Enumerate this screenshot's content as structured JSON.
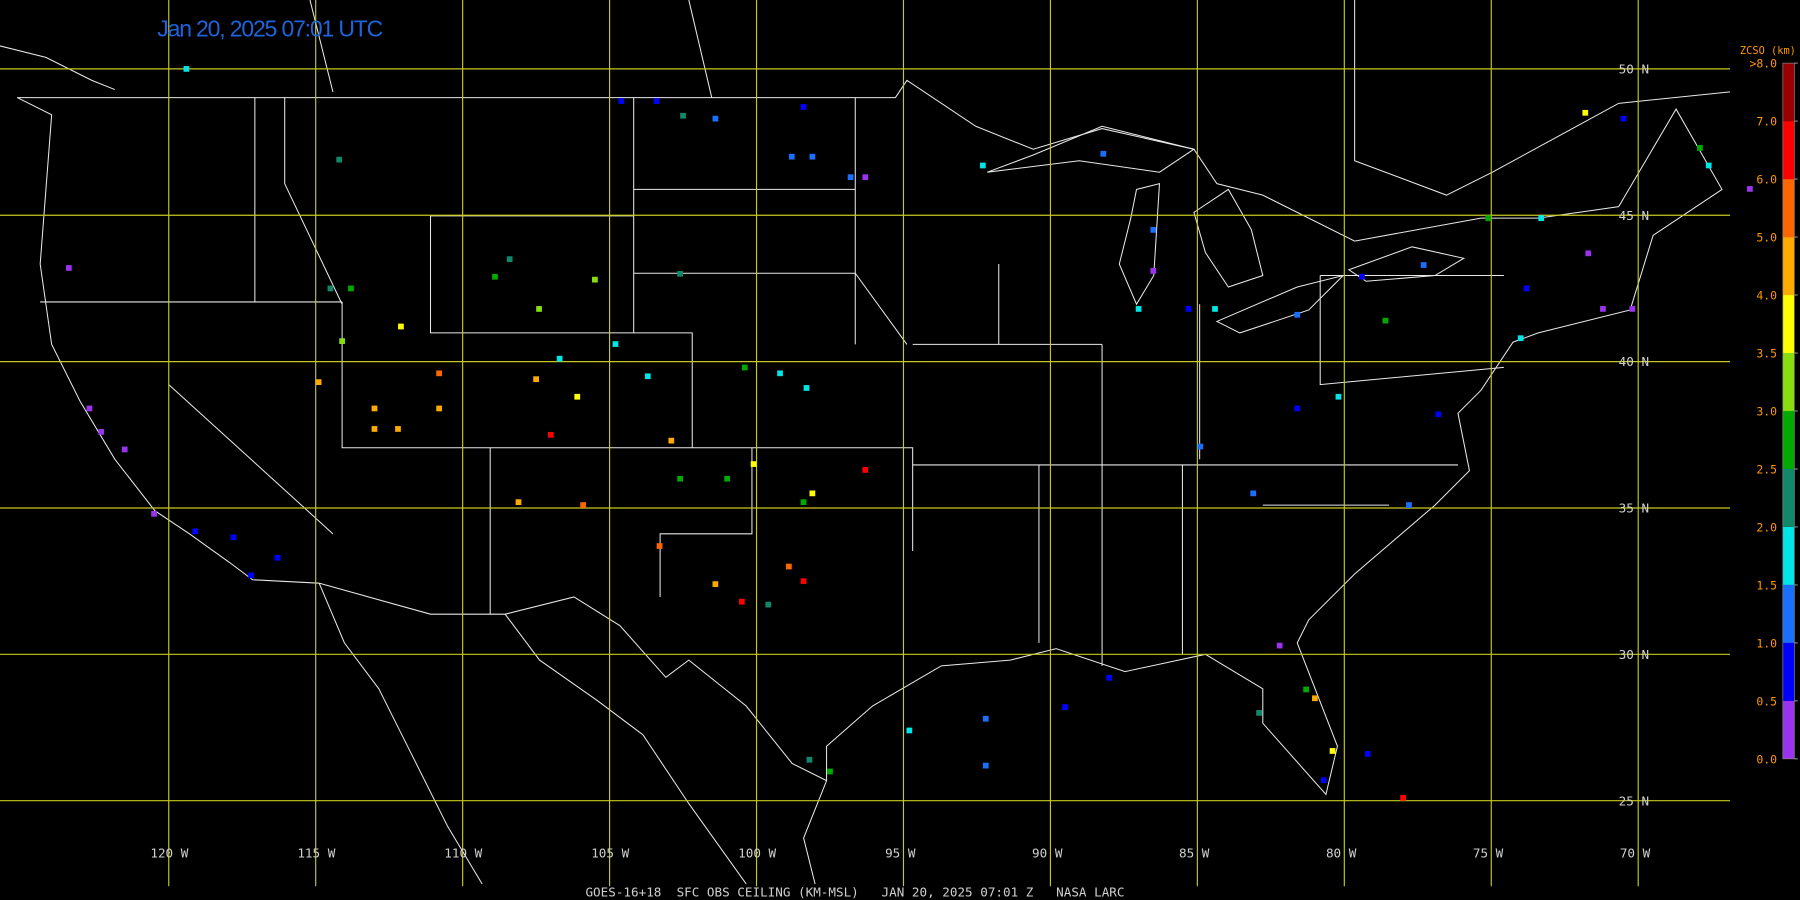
{
  "map": {
    "title": "Jan 20, 2025 07:01 UTC",
    "caption": "GOES-16+18  SFC OBS CEILING (KM-MSL)   JAN 20, 2025 07:01 Z   NASA LARC",
    "grid_color": "#c8c81e",
    "lat_lines": [
      {
        "value": 50,
        "label": "50 N"
      },
      {
        "value": 45,
        "label": "45 N"
      },
      {
        "value": 40,
        "label": "40 N"
      },
      {
        "value": 35,
        "label": "35 N"
      },
      {
        "value": 30,
        "label": "30 N"
      },
      {
        "value": 25,
        "label": "25 N"
      }
    ],
    "lon_lines": [
      {
        "value": -120,
        "label": "120 W"
      },
      {
        "value": -115,
        "label": "115 W"
      },
      {
        "value": -110,
        "label": "110 W"
      },
      {
        "value": -105,
        "label": "105 W"
      },
      {
        "value": -100,
        "label": "100 W"
      },
      {
        "value": -95,
        "label": "95 W"
      },
      {
        "value": -90,
        "label": "90 W"
      },
      {
        "value": -85,
        "label": "85 W"
      },
      {
        "value": -80,
        "label": "80 W"
      },
      {
        "value": -75,
        "label": "75 W"
      },
      {
        "value": -70,
        "label": "70 W"
      }
    ],
    "legend": {
      "title": "ZCSO (km)",
      "ticks": [
        {
          "value": 0,
          "label": "0.0"
        },
        {
          "value": 0.5,
          "label": "0.5"
        },
        {
          "value": 1,
          "label": "1.0"
        },
        {
          "value": 1.5,
          "label": "1.5"
        },
        {
          "value": 2,
          "label": "2.0"
        },
        {
          "value": 2.5,
          "label": "2.5"
        },
        {
          "value": 3,
          "label": "3.0"
        },
        {
          "value": 3.5,
          "label": "3.5"
        },
        {
          "value": 4,
          "label": "4.0"
        },
        {
          "value": 5,
          "label": "5.0"
        },
        {
          "value": 6,
          "label": "6.0"
        },
        {
          "value": 7,
          "label": "7.0"
        },
        {
          "value": 8,
          "label": ">8.0"
        }
      ],
      "colors": [
        "#9933ee",
        "#0000ff",
        "#1a6fff",
        "#00e5e5",
        "#11886a",
        "#00aa00",
        "#88dd11",
        "#ffff00",
        "#ffaa00",
        "#ff6600",
        "#ff0000",
        "#990000"
      ],
      "label_color": "#ff9900"
    },
    "stations": [
      {
        "lon": -119.4,
        "lat": 50.0,
        "value": 1.7
      },
      {
        "lon": -123.4,
        "lat": 43.2,
        "value": 0.2
      },
      {
        "lon": -114.2,
        "lat": 46.9,
        "value": 2.2
      },
      {
        "lon": -114.5,
        "lat": 42.5,
        "value": 2.2
      },
      {
        "lon": -113.8,
        "lat": 42.5,
        "value": 2.7
      },
      {
        "lon": -114.1,
        "lat": 40.7,
        "value": 3.2
      },
      {
        "lon": -112.1,
        "lat": 41.2,
        "value": 3.7
      },
      {
        "lon": -114.9,
        "lat": 39.3,
        "value": 4.5
      },
      {
        "lon": -113.0,
        "lat": 38.4,
        "value": 4.5
      },
      {
        "lon": -110.8,
        "lat": 39.6,
        "value": 5.5
      },
      {
        "lon": -113.0,
        "lat": 37.7,
        "value": 4.5
      },
      {
        "lon": -112.2,
        "lat": 37.7,
        "value": 4.5
      },
      {
        "lon": -110.8,
        "lat": 38.4,
        "value": 4.5
      },
      {
        "lon": -108.4,
        "lat": 43.5,
        "value": 2.2
      },
      {
        "lon": -108.9,
        "lat": 42.9,
        "value": 2.7
      },
      {
        "lon": -107.4,
        "lat": 41.8,
        "value": 3.2
      },
      {
        "lon": -105.5,
        "lat": 42.8,
        "value": 3.2
      },
      {
        "lon": -104.6,
        "lat": 48.9,
        "value": 0.7
      },
      {
        "lon": -103.4,
        "lat": 48.9,
        "value": 0.7
      },
      {
        "lon": -102.5,
        "lat": 48.4,
        "value": 2.2
      },
      {
        "lon": -101.4,
        "lat": 48.3,
        "value": 1.2
      },
      {
        "lon": -98.4,
        "lat": 48.7,
        "value": 0.7
      },
      {
        "lon": -98.8,
        "lat": 47.0,
        "value": 1.2
      },
      {
        "lon": -98.1,
        "lat": 47.0,
        "value": 1.2
      },
      {
        "lon": -96.8,
        "lat": 46.3,
        "value": 1.2
      },
      {
        "lon": -96.3,
        "lat": 46.3,
        "value": 0.2
      },
      {
        "lon": -102.6,
        "lat": 43.0,
        "value": 2.2
      },
      {
        "lon": -107.0,
        "lat": 37.5,
        "value": 6.5
      },
      {
        "lon": -108.1,
        "lat": 35.2,
        "value": 4.5
      },
      {
        "lon": -105.9,
        "lat": 35.1,
        "value": 5.5
      },
      {
        "lon": -107.5,
        "lat": 39.4,
        "value": 4.5
      },
      {
        "lon": -106.1,
        "lat": 38.8,
        "value": 3.7
      },
      {
        "lon": -106.7,
        "lat": 40.1,
        "value": 1.7
      },
      {
        "lon": -104.8,
        "lat": 40.6,
        "value": 1.7
      },
      {
        "lon": -103.7,
        "lat": 39.5,
        "value": 1.7
      },
      {
        "lon": -102.9,
        "lat": 37.3,
        "value": 4.5
      },
      {
        "lon": -103.3,
        "lat": 33.7,
        "value": 5.5
      },
      {
        "lon": -101.4,
        "lat": 32.4,
        "value": 4.5
      },
      {
        "lon": -100.5,
        "lat": 31.8,
        "value": 6.5
      },
      {
        "lon": -99.6,
        "lat": 31.7,
        "value": 2.2
      },
      {
        "lon": -98.9,
        "lat": 33.0,
        "value": 5.5
      },
      {
        "lon": -98.4,
        "lat": 32.5,
        "value": 6.5
      },
      {
        "lon": -99.2,
        "lat": 39.6,
        "value": 1.7
      },
      {
        "lon": -98.3,
        "lat": 39.1,
        "value": 1.7
      },
      {
        "lon": -100.4,
        "lat": 39.8,
        "value": 2.7
      },
      {
        "lon": -96.3,
        "lat": 36.3,
        "value": 6.5
      },
      {
        "lon": -100.1,
        "lat": 36.5,
        "value": 3.7
      },
      {
        "lon": -98.4,
        "lat": 35.2,
        "value": 2.7
      },
      {
        "lon": -98.1,
        "lat": 35.5,
        "value": 3.7
      },
      {
        "lon": -102.6,
        "lat": 36.0,
        "value": 2.7
      },
      {
        "lon": -101.0,
        "lat": 36.0,
        "value": 2.7
      },
      {
        "lon": -94.8,
        "lat": 27.4,
        "value": 1.7
      },
      {
        "lon": -92.2,
        "lat": 27.8,
        "value": 1.2
      },
      {
        "lon": -89.5,
        "lat": 28.2,
        "value": 0.7
      },
      {
        "lon": -88.0,
        "lat": 29.2,
        "value": 0.7
      },
      {
        "lon": -92.2,
        "lat": 26.2,
        "value": 1.2
      },
      {
        "lon": -92.3,
        "lat": 46.7,
        "value": 1.7
      },
      {
        "lon": -88.2,
        "lat": 47.1,
        "value": 1.2
      },
      {
        "lon": -86.5,
        "lat": 44.5,
        "value": 1.2
      },
      {
        "lon": -86.5,
        "lat": 43.1,
        "value": 0.2
      },
      {
        "lon": -87.0,
        "lat": 41.8,
        "value": 1.7
      },
      {
        "lon": -85.3,
        "lat": 41.8,
        "value": 0.7
      },
      {
        "lon": -84.4,
        "lat": 41.8,
        "value": 1.7
      },
      {
        "lon": -81.6,
        "lat": 41.6,
        "value": 1.2
      },
      {
        "lon": -84.9,
        "lat": 37.1,
        "value": 1.2
      },
      {
        "lon": -83.1,
        "lat": 35.5,
        "value": 1.2
      },
      {
        "lon": -81.6,
        "lat": 38.4,
        "value": 0.7
      },
      {
        "lon": -80.2,
        "lat": 38.8,
        "value": 1.7
      },
      {
        "lon": -78.6,
        "lat": 41.4,
        "value": 2.7
      },
      {
        "lon": -79.4,
        "lat": 42.9,
        "value": 0.7
      },
      {
        "lon": -77.3,
        "lat": 43.3,
        "value": 1.2
      },
      {
        "lon": -73.3,
        "lat": 44.9,
        "value": 1.7
      },
      {
        "lon": -71.7,
        "lat": 43.7,
        "value": 0.2
      },
      {
        "lon": -71.2,
        "lat": 41.8,
        "value": 0.2
      },
      {
        "lon": -70.2,
        "lat": 41.8,
        "value": 0.2
      },
      {
        "lon": -74.0,
        "lat": 40.8,
        "value": 1.7
      },
      {
        "lon": -73.8,
        "lat": 42.5,
        "value": 0.7
      },
      {
        "lon": -71.8,
        "lat": 48.5,
        "value": 3.7
      },
      {
        "lon": -70.5,
        "lat": 48.3,
        "value": 0.7
      },
      {
        "lon": -67.9,
        "lat": 47.3,
        "value": 2.7
      },
      {
        "lon": -67.6,
        "lat": 46.7,
        "value": 1.7
      },
      {
        "lon": -66.2,
        "lat": 45.9,
        "value": 0.2
      },
      {
        "lon": -76.8,
        "lat": 38.2,
        "value": 0.7
      },
      {
        "lon": -77.8,
        "lat": 35.1,
        "value": 1.2
      },
      {
        "lon": -80.4,
        "lat": 26.7,
        "value": 3.7
      },
      {
        "lon": -80.7,
        "lat": 25.7,
        "value": 0.7
      },
      {
        "lon": -81.3,
        "lat": 28.8,
        "value": 2.7
      },
      {
        "lon": -81.0,
        "lat": 28.5,
        "value": 4.5
      },
      {
        "lon": -82.9,
        "lat": 28.0,
        "value": 2.2
      },
      {
        "lon": -82.2,
        "lat": 30.3,
        "value": 0.2
      },
      {
        "lon": -79.2,
        "lat": 26.6,
        "value": 0.7
      },
      {
        "lon": -78.0,
        "lat": 25.1,
        "value": 6.5
      },
      {
        "lon": -122.3,
        "lat": 37.6,
        "value": 0.2
      },
      {
        "lon": -122.7,
        "lat": 38.4,
        "value": 0.2
      },
      {
        "lon": -121.5,
        "lat": 37.0,
        "value": 0.2
      },
      {
        "lon": -120.5,
        "lat": 34.8,
        "value": 0.2
      },
      {
        "lon": -119.1,
        "lat": 34.2,
        "value": 0.7
      },
      {
        "lon": -117.8,
        "lat": 34.0,
        "value": 0.7
      },
      {
        "lon": -117.2,
        "lat": 32.7,
        "value": 0.7
      },
      {
        "lon": -116.3,
        "lat": 33.3,
        "value": 0.7
      },
      {
        "lon": -98.2,
        "lat": 26.4,
        "value": 2.2
      },
      {
        "lon": -97.5,
        "lat": 26.0,
        "value": 2.7
      },
      {
        "lon": -75.1,
        "lat": 44.9,
        "value": 2.7
      }
    ]
  }
}
